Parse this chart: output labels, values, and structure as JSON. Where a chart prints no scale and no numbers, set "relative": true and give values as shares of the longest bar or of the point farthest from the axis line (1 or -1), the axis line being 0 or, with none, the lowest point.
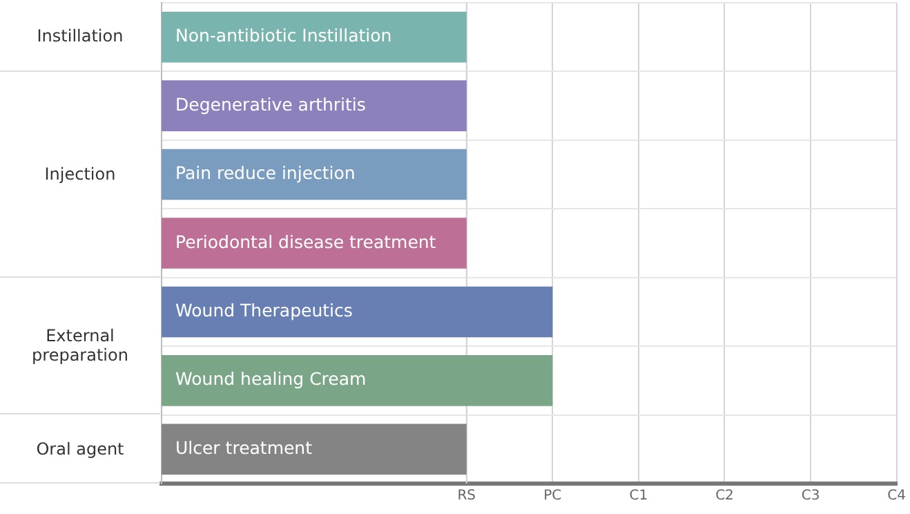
{
  "chart_data": {
    "type": "bar",
    "orientation": "horizontal",
    "relative": true,
    "categories": [
      "Non-antibiotic Instillation",
      "Degenerative arthritis",
      "Pain reduce injection",
      "Periodontal disease treatment",
      "Wound Therapeutics",
      "Wound healing Cream",
      "Ulcer treatment"
    ],
    "values": [
      0.78,
      0.78,
      0.78,
      0.78,
      1,
      1,
      0.78
    ],
    "colors": [
      "#79b5ae",
      "#8d80bb",
      "#7a9dbf",
      "#bd6f96",
      "#677fb2",
      "#7aa687",
      "#848484"
    ],
    "annotations": [
      "Instillation",
      "Injection",
      "External preparation",
      "Oral agent",
      "RS",
      "PC",
      "C1",
      "C2",
      "C3",
      "C4"
    ],
    "ref_lines": [
      {
        "axis": "x",
        "value": 0.78,
        "color": "#d4d4d4"
      }
    ],
    "grid": true
  }
}
